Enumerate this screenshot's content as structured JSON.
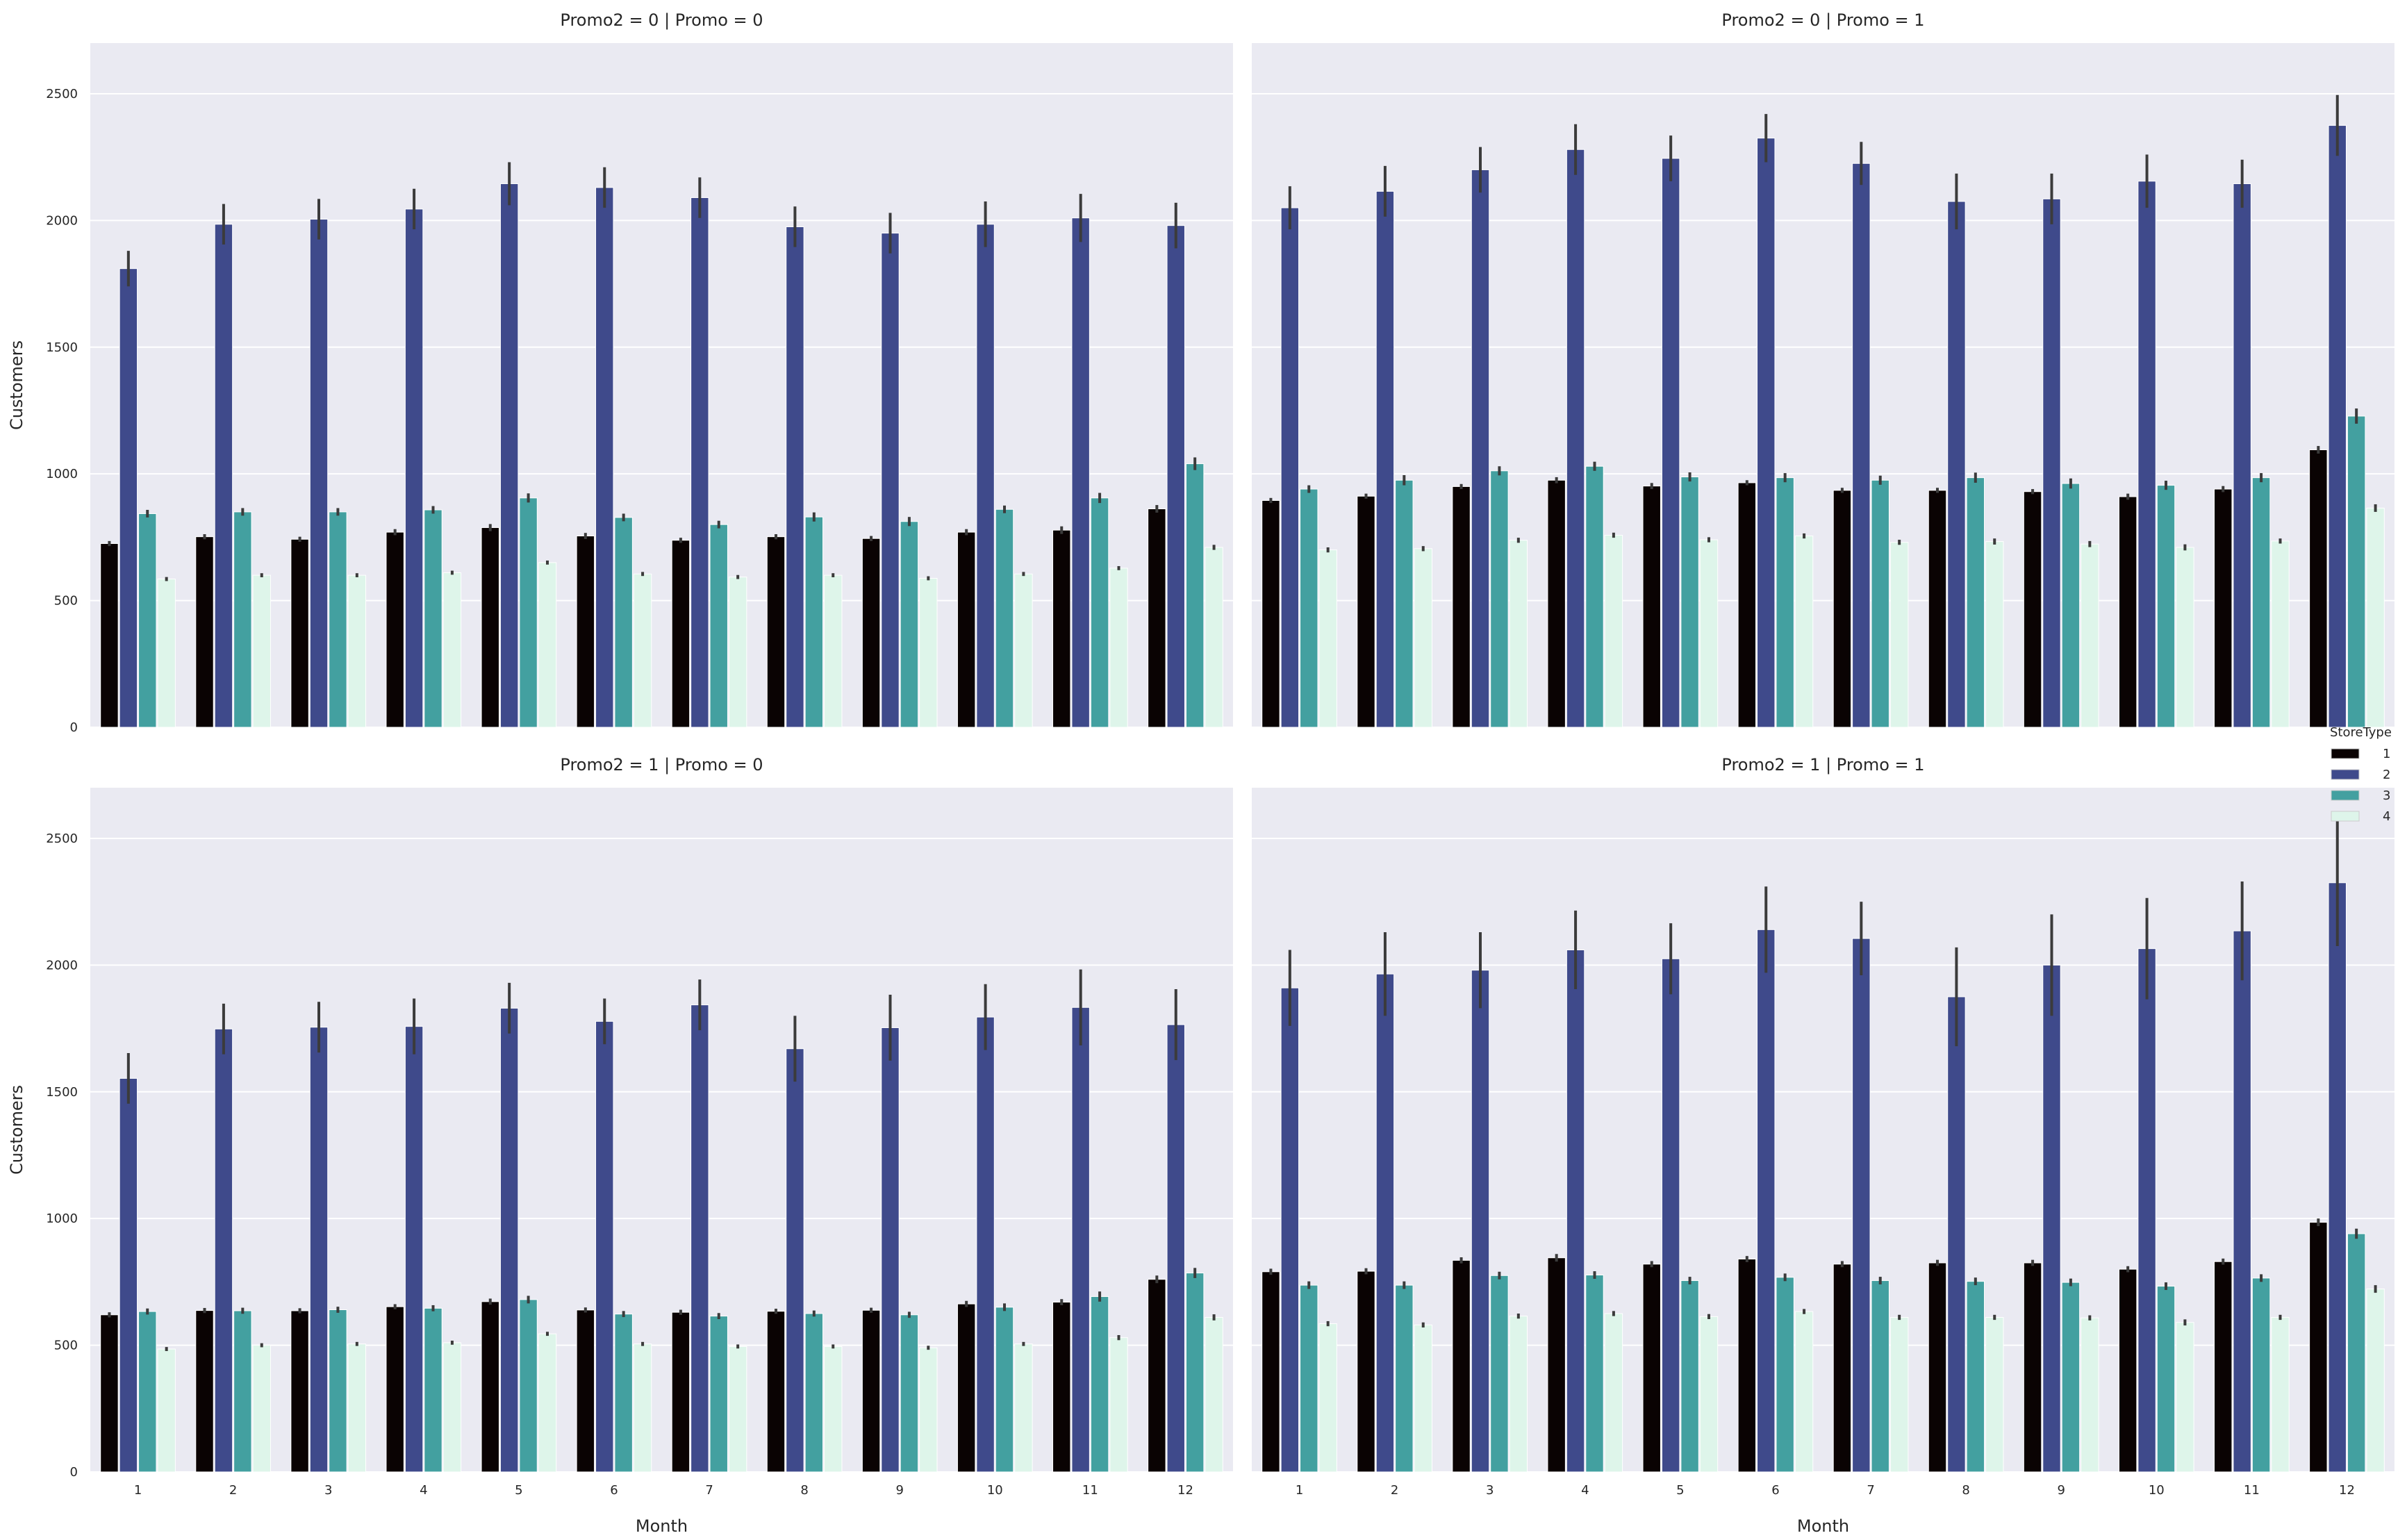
{
  "chart_data": {
    "type": "bar",
    "xlabel": "Month",
    "ylabel": "Customers",
    "ylim": [
      0,
      2700
    ],
    "yticks": [
      0,
      500,
      1000,
      1500,
      2000,
      2500
    ],
    "categories": [
      "1",
      "2",
      "3",
      "4",
      "5",
      "6",
      "7",
      "8",
      "9",
      "10",
      "11",
      "12"
    ],
    "grid": true,
    "legend": {
      "title": "StoreType",
      "placement": "center-right",
      "entries": [
        "1",
        "2",
        "3",
        "4"
      ]
    },
    "colors": [
      "#0a0303",
      "#3f4a8b",
      "#43a0a0",
      "#def5ea"
    ],
    "facets": [
      {
        "title": "Promo2 = 0 | Promo = 0",
        "series": [
          {
            "name": "1",
            "values": [
              725,
              752,
              742,
              770,
              788,
              755,
              738,
              752,
              745,
              770,
              778,
              862
            ],
            "errors": [
              10,
              10,
              10,
              12,
              14,
              12,
              10,
              10,
              10,
              12,
              15,
              15
            ]
          },
          {
            "name": "2",
            "values": [
              1810,
              1985,
              2005,
              2045,
              2145,
              2130,
              2090,
              1975,
              1950,
              1985,
              2010,
              1980
            ],
            "errors": [
              70,
              80,
              80,
              80,
              85,
              80,
              80,
              80,
              80,
              90,
              95,
              90
            ]
          },
          {
            "name": "3",
            "values": [
              843,
              850,
              850,
              858,
              905,
              828,
              800,
              830,
              812,
              860,
              905,
              1040
            ],
            "errors": [
              15,
              15,
              15,
              15,
              18,
              15,
              15,
              18,
              18,
              15,
              20,
              25
            ]
          },
          {
            "name": "4",
            "values": [
              585,
              600,
              600,
              610,
              650,
              605,
              593,
              600,
              588,
              605,
              628,
              710
            ],
            "errors": [
              8,
              8,
              8,
              8,
              8,
              8,
              8,
              8,
              8,
              8,
              8,
              10
            ]
          }
        ]
      },
      {
        "title": "Promo2 = 0 | Promo = 1",
        "series": [
          {
            "name": "1",
            "values": [
              895,
              912,
              950,
              975,
              952,
              965,
              935,
              935,
              930,
              910,
              940,
              1095
            ],
            "errors": [
              10,
              10,
              10,
              12,
              12,
              10,
              10,
              10,
              10,
              12,
              12,
              15
            ]
          },
          {
            "name": "2",
            "values": [
              2050,
              2115,
              2200,
              2280,
              2245,
              2325,
              2225,
              2075,
              2085,
              2155,
              2145,
              2375
            ],
            "errors": [
              85,
              100,
              90,
              100,
              90,
              95,
              85,
              110,
              100,
              105,
              95,
              120
            ]
          },
          {
            "name": "3",
            "values": [
              940,
              975,
              1012,
              1030,
              988,
              985,
              975,
              985,
              962,
              955,
              985,
              1228
            ],
            "errors": [
              15,
              20,
              18,
              18,
              18,
              18,
              18,
              20,
              20,
              18,
              18,
              30
            ]
          },
          {
            "name": "4",
            "values": [
              700,
              705,
              738,
              758,
              740,
              755,
              730,
              733,
              723,
              710,
              735,
              865
            ],
            "errors": [
              10,
              10,
              10,
              10,
              10,
              10,
              10,
              12,
              12,
              12,
              10,
              15
            ]
          }
        ]
      },
      {
        "title": "Promo2 = 1 | Promo = 0",
        "series": [
          {
            "name": "1",
            "values": [
              620,
              637,
              636,
              652,
              672,
              639,
              630,
              634,
              638,
              663,
              670,
              760
            ],
            "errors": [
              10,
              10,
              10,
              10,
              12,
              10,
              10,
              10,
              10,
              12,
              12,
              15
            ]
          },
          {
            "name": "2",
            "values": [
              1553,
              1748,
              1755,
              1758,
              1830,
              1778,
              1843,
              1670,
              1753,
              1795,
              1833,
              1765
            ],
            "errors": [
              100,
              100,
              100,
              110,
              100,
              90,
              100,
              130,
              130,
              130,
              150,
              140
            ]
          },
          {
            "name": "3",
            "values": [
              633,
              636,
              640,
              646,
              680,
              623,
              615,
              625,
              620,
              650,
              692,
              785
            ],
            "errors": [
              12,
              12,
              12,
              12,
              15,
              12,
              12,
              12,
              12,
              15,
              20,
              20
            ]
          },
          {
            "name": "4",
            "values": [
              485,
              500,
              505,
              510,
              545,
              505,
              495,
              495,
              490,
              505,
              530,
              610
            ],
            "errors": [
              8,
              8,
              8,
              8,
              8,
              8,
              8,
              8,
              8,
              8,
              10,
              12
            ]
          }
        ]
      },
      {
        "title": "Promo2 = 1 | Promo = 1",
        "series": [
          {
            "name": "1",
            "values": [
              790,
              792,
              835,
              845,
              820,
              840,
              820,
              825,
              825,
              800,
              830,
              985
            ],
            "errors": [
              12,
              12,
              12,
              15,
              12,
              12,
              12,
              12,
              12,
              12,
              12,
              15
            ]
          },
          {
            "name": "2",
            "values": [
              1910,
              1965,
              1980,
              2060,
              2025,
              2140,
              2105,
              1875,
              2000,
              2065,
              2135,
              2325
            ],
            "errors": [
              150,
              165,
              150,
              155,
              140,
              170,
              145,
              195,
              200,
              200,
              195,
              250
            ]
          },
          {
            "name": "3",
            "values": [
              737,
              737,
              775,
              777,
              755,
              768,
              755,
              752,
              748,
              733,
              765,
              940
            ],
            "errors": [
              15,
              15,
              15,
              15,
              15,
              15,
              15,
              15,
              15,
              15,
              15,
              20
            ]
          },
          {
            "name": "4",
            "values": [
              585,
              580,
              615,
              625,
              613,
              633,
              610,
              610,
              608,
              590,
              610,
              722
            ],
            "errors": [
              10,
              10,
              10,
              10,
              10,
              10,
              10,
              10,
              10,
              12,
              10,
              15
            ]
          }
        ]
      }
    ]
  }
}
